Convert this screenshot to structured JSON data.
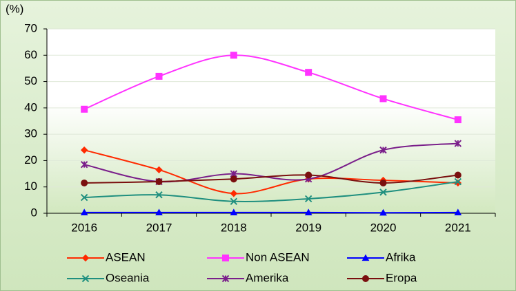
{
  "chart_data": {
    "type": "line",
    "y_label": "(%)",
    "categories": [
      "2016",
      "2017",
      "2018",
      "2019",
      "2020",
      "2021"
    ],
    "series": [
      {
        "name": "ASEAN",
        "color": "#ff2a00",
        "marker": "diamond",
        "values": [
          24,
          16.5,
          7.5,
          13,
          12.5,
          11.5
        ]
      },
      {
        "name": "Non ASEAN",
        "color": "#ff33ff",
        "marker": "square",
        "values": [
          39.5,
          52,
          60,
          53.5,
          43.5,
          35.5
        ]
      },
      {
        "name": "Afrika",
        "color": "#0000ff",
        "marker": "triangle",
        "values": [
          0.3,
          0.3,
          0.3,
          0.3,
          0.2,
          0.3
        ]
      },
      {
        "name": "Oseania",
        "color": "#1f8f7f",
        "marker": "x",
        "values": [
          6,
          7,
          4.5,
          5.5,
          8,
          12
        ]
      },
      {
        "name": "Amerika",
        "color": "#7a1f8a",
        "marker": "star",
        "values": [
          18.5,
          12,
          15,
          13,
          24,
          26.5
        ]
      },
      {
        "name": "Eropa",
        "color": "#7a0f0f",
        "marker": "circle",
        "values": [
          11.5,
          12,
          13,
          14.5,
          11.5,
          14.5
        ]
      }
    ],
    "ylim": [
      0,
      70
    ],
    "yticks": [
      0,
      10,
      20,
      30,
      40,
      50,
      60,
      70
    ],
    "grid": true
  }
}
